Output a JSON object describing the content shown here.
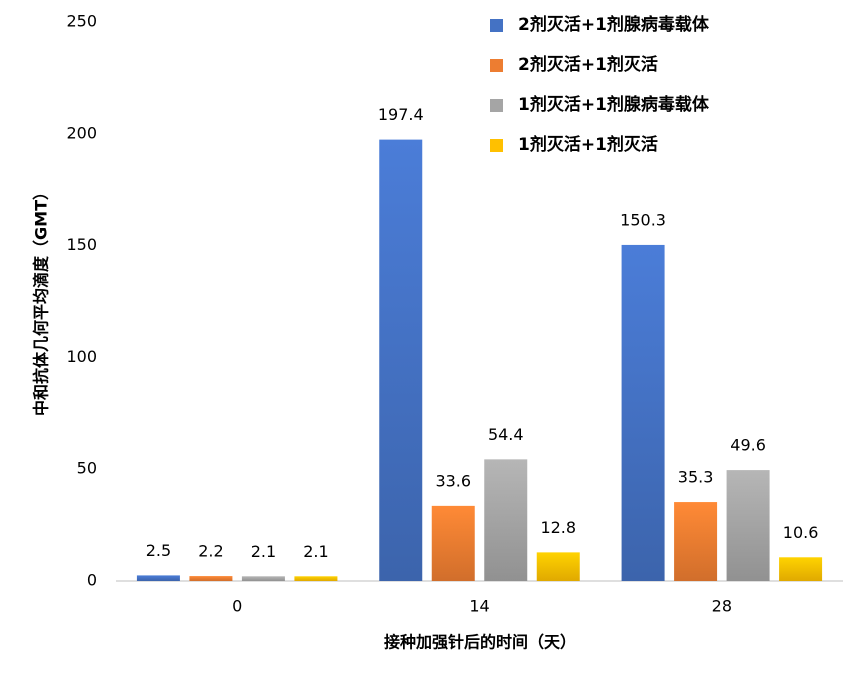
{
  "chart_data": {
    "type": "bar",
    "x_label": "接种加强针后的时间（天）",
    "y_label": "中和抗体几何平均滴度（GMT）",
    "categories": [
      "0",
      "14",
      "28"
    ],
    "series": [
      {
        "name": "2剂灭活+1剂腺病毒载体",
        "color": "#4472c4",
        "values": [
          2.5,
          197.4,
          150.3
        ]
      },
      {
        "name": "2剂灭活+1剂灭活",
        "color": "#ed7d31",
        "values": [
          2.2,
          33.6,
          35.3
        ]
      },
      {
        "name": "1剂灭活+1剂腺病毒载体",
        "color": "#a5a5a5",
        "values": [
          2.1,
          54.4,
          49.6
        ]
      },
      {
        "name": "1剂灭活+1剂灭活",
        "color": "#ffc000",
        "values": [
          2.1,
          12.8,
          10.6
        ]
      }
    ],
    "ylim": [
      0,
      250
    ],
    "yticks": [
      0,
      50,
      100,
      150,
      200,
      250
    ],
    "grid": false,
    "legend": "top-right"
  }
}
